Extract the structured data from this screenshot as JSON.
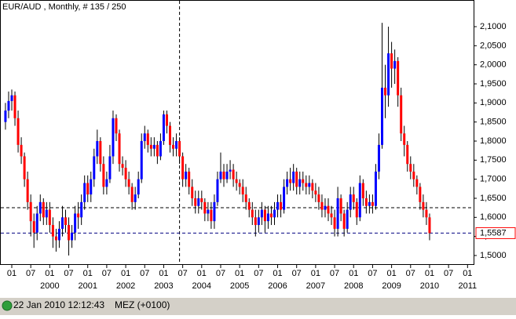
{
  "chart_data": {
    "type": "candlestick",
    "title": "EUR/AUD , Monthly, # 135 / 250",
    "x": [
      "1998-11",
      "1998-12",
      "1999-01",
      "1999-02",
      "1999-03",
      "1999-04",
      "1999-05",
      "1999-06",
      "1999-07",
      "1999-08",
      "1999-09",
      "1999-10",
      "1999-11",
      "1999-12",
      "2000-01",
      "2000-02",
      "2000-03",
      "2000-04",
      "2000-05",
      "2000-06",
      "2000-07",
      "2000-08",
      "2000-09",
      "2000-10",
      "2000-11",
      "2000-12",
      "2001-01",
      "2001-02",
      "2001-03",
      "2001-04",
      "2001-05",
      "2001-06",
      "2001-07",
      "2001-08",
      "2001-09",
      "2001-10",
      "2001-11",
      "2001-12",
      "2002-01",
      "2002-02",
      "2002-03",
      "2002-04",
      "2002-05",
      "2002-06",
      "2002-07",
      "2002-08",
      "2002-09",
      "2002-10",
      "2002-11",
      "2002-12",
      "2003-01",
      "2003-02",
      "2003-03",
      "2003-04",
      "2003-05",
      "2003-06",
      "2003-07",
      "2003-08",
      "2003-09",
      "2003-10",
      "2003-11",
      "2003-12",
      "2004-01",
      "2004-02",
      "2004-03",
      "2004-04",
      "2004-05",
      "2004-06",
      "2004-07",
      "2004-08",
      "2004-09",
      "2004-10",
      "2004-11",
      "2004-12",
      "2005-01",
      "2005-02",
      "2005-03",
      "2005-04",
      "2005-05",
      "2005-06",
      "2005-07",
      "2005-08",
      "2005-09",
      "2005-10",
      "2005-11",
      "2005-12",
      "2006-01",
      "2006-02",
      "2006-03",
      "2006-04",
      "2006-05",
      "2006-06",
      "2006-07",
      "2006-08",
      "2006-09",
      "2006-10",
      "2006-11",
      "2006-12",
      "2007-01",
      "2007-02",
      "2007-03",
      "2007-04",
      "2007-05",
      "2007-06",
      "2007-07",
      "2007-08",
      "2007-09",
      "2007-10",
      "2007-11",
      "2007-12",
      "2008-01",
      "2008-02",
      "2008-03",
      "2008-04",
      "2008-05",
      "2008-06",
      "2008-07",
      "2008-08",
      "2008-09",
      "2008-10",
      "2008-11",
      "2008-12",
      "2009-01",
      "2009-02",
      "2009-03",
      "2009-04",
      "2009-05",
      "2009-06",
      "2009-07",
      "2009-08",
      "2009-09",
      "2009-10",
      "2009-11",
      "2009-12",
      "2010-01"
    ],
    "open": [
      1.85,
      1.88,
      1.905,
      1.92,
      1.86,
      1.79,
      1.76,
      1.7,
      1.64,
      1.59,
      1.56,
      1.61,
      1.64,
      1.6,
      1.62,
      1.58,
      1.55,
      1.54,
      1.57,
      1.6,
      1.58,
      1.54,
      1.56,
      1.61,
      1.6,
      1.64,
      1.69,
      1.66,
      1.7,
      1.76,
      1.8,
      1.74,
      1.68,
      1.7,
      1.76,
      1.86,
      1.82,
      1.74,
      1.73,
      1.7,
      1.68,
      1.64,
      1.66,
      1.7,
      1.8,
      1.82,
      1.79,
      1.78,
      1.79,
      1.76,
      1.8,
      1.87,
      1.84,
      1.79,
      1.78,
      1.8,
      1.76,
      1.7,
      1.72,
      1.68,
      1.65,
      1.63,
      1.65,
      1.64,
      1.61,
      1.62,
      1.59,
      1.64,
      1.7,
      1.72,
      1.7,
      1.72,
      1.725,
      1.7,
      1.69,
      1.68,
      1.66,
      1.64,
      1.62,
      1.6,
      1.58,
      1.6,
      1.62,
      1.59,
      1.61,
      1.6,
      1.62,
      1.64,
      1.62,
      1.68,
      1.7,
      1.69,
      1.72,
      1.68,
      1.7,
      1.69,
      1.68,
      1.69,
      1.67,
      1.66,
      1.64,
      1.62,
      1.63,
      1.61,
      1.6,
      1.57,
      1.65,
      1.61,
      1.57,
      1.62,
      1.66,
      1.64,
      1.6,
      1.69,
      1.65,
      1.63,
      1.64,
      1.63,
      1.72,
      1.79,
      1.94,
      1.92,
      2.03,
      1.99,
      2.01,
      1.92,
      1.82,
      1.79,
      1.74,
      1.72,
      1.7,
      1.68,
      1.64,
      1.62,
      1.6
    ],
    "high": [
      1.9,
      1.93,
      1.935,
      1.93,
      1.88,
      1.81,
      1.77,
      1.72,
      1.66,
      1.61,
      1.63,
      1.66,
      1.65,
      1.64,
      1.64,
      1.6,
      1.57,
      1.59,
      1.63,
      1.62,
      1.6,
      1.58,
      1.63,
      1.64,
      1.66,
      1.71,
      1.71,
      1.72,
      1.78,
      1.83,
      1.81,
      1.76,
      1.72,
      1.79,
      1.88,
      1.87,
      1.83,
      1.76,
      1.75,
      1.72,
      1.69,
      1.68,
      1.72,
      1.82,
      1.84,
      1.83,
      1.81,
      1.81,
      1.8,
      1.82,
      1.88,
      1.88,
      1.85,
      1.81,
      1.82,
      1.81,
      1.77,
      1.74,
      1.73,
      1.7,
      1.67,
      1.67,
      1.67,
      1.65,
      1.64,
      1.64,
      1.66,
      1.72,
      1.77,
      1.74,
      1.74,
      1.75,
      1.74,
      1.72,
      1.7,
      1.7,
      1.68,
      1.65,
      1.64,
      1.62,
      1.62,
      1.64,
      1.63,
      1.63,
      1.63,
      1.64,
      1.66,
      1.66,
      1.7,
      1.72,
      1.73,
      1.74,
      1.73,
      1.72,
      1.72,
      1.71,
      1.71,
      1.7,
      1.69,
      1.68,
      1.66,
      1.65,
      1.65,
      1.63,
      1.62,
      1.68,
      1.66,
      1.62,
      1.64,
      1.68,
      1.68,
      1.65,
      1.71,
      1.7,
      1.67,
      1.66,
      1.66,
      1.74,
      1.82,
      2.11,
      2.0,
      2.1,
      2.06,
      2.04,
      2.02,
      1.94,
      1.84,
      1.8,
      1.76,
      1.74,
      1.71,
      1.69,
      1.66,
      1.64,
      1.61
    ],
    "low": [
      1.83,
      1.86,
      1.88,
      1.84,
      1.77,
      1.74,
      1.68,
      1.62,
      1.55,
      1.52,
      1.54,
      1.59,
      1.58,
      1.58,
      1.56,
      1.52,
      1.51,
      1.52,
      1.55,
      1.56,
      1.5,
      1.52,
      1.54,
      1.57,
      1.58,
      1.62,
      1.64,
      1.64,
      1.68,
      1.74,
      1.72,
      1.66,
      1.66,
      1.69,
      1.74,
      1.8,
      1.72,
      1.71,
      1.68,
      1.66,
      1.62,
      1.62,
      1.65,
      1.69,
      1.78,
      1.77,
      1.76,
      1.76,
      1.74,
      1.75,
      1.79,
      1.82,
      1.77,
      1.76,
      1.76,
      1.74,
      1.68,
      1.68,
      1.66,
      1.63,
      1.61,
      1.61,
      1.62,
      1.59,
      1.59,
      1.57,
      1.57,
      1.63,
      1.69,
      1.68,
      1.69,
      1.7,
      1.68,
      1.67,
      1.66,
      1.64,
      1.62,
      1.6,
      1.58,
      1.55,
      1.56,
      1.58,
      1.56,
      1.57,
      1.58,
      1.58,
      1.6,
      1.6,
      1.61,
      1.66,
      1.67,
      1.67,
      1.66,
      1.66,
      1.67,
      1.66,
      1.66,
      1.65,
      1.64,
      1.62,
      1.6,
      1.6,
      1.59,
      1.58,
      1.55,
      1.55,
      1.59,
      1.55,
      1.56,
      1.6,
      1.62,
      1.58,
      1.59,
      1.63,
      1.61,
      1.61,
      1.61,
      1.62,
      1.7,
      1.78,
      1.86,
      1.89,
      1.94,
      1.95,
      1.89,
      1.8,
      1.76,
      1.72,
      1.7,
      1.68,
      1.66,
      1.62,
      1.6,
      1.58,
      1.54
    ],
    "close": [
      1.88,
      1.905,
      1.92,
      1.86,
      1.79,
      1.76,
      1.7,
      1.64,
      1.59,
      1.56,
      1.61,
      1.64,
      1.6,
      1.62,
      1.58,
      1.55,
      1.54,
      1.57,
      1.6,
      1.58,
      1.54,
      1.56,
      1.61,
      1.6,
      1.64,
      1.69,
      1.66,
      1.7,
      1.76,
      1.8,
      1.74,
      1.68,
      1.7,
      1.76,
      1.86,
      1.82,
      1.74,
      1.73,
      1.7,
      1.68,
      1.64,
      1.66,
      1.7,
      1.8,
      1.82,
      1.79,
      1.78,
      1.79,
      1.76,
      1.8,
      1.87,
      1.84,
      1.79,
      1.78,
      1.8,
      1.76,
      1.7,
      1.72,
      1.68,
      1.65,
      1.63,
      1.65,
      1.64,
      1.61,
      1.62,
      1.59,
      1.64,
      1.7,
      1.72,
      1.7,
      1.72,
      1.725,
      1.7,
      1.69,
      1.68,
      1.66,
      1.64,
      1.62,
      1.6,
      1.58,
      1.6,
      1.62,
      1.59,
      1.61,
      1.6,
      1.62,
      1.64,
      1.62,
      1.68,
      1.7,
      1.69,
      1.72,
      1.68,
      1.7,
      1.69,
      1.68,
      1.69,
      1.67,
      1.66,
      1.64,
      1.62,
      1.63,
      1.61,
      1.6,
      1.57,
      1.65,
      1.61,
      1.57,
      1.62,
      1.66,
      1.64,
      1.6,
      1.69,
      1.65,
      1.63,
      1.64,
      1.63,
      1.72,
      1.79,
      1.94,
      1.92,
      2.03,
      1.99,
      2.01,
      1.92,
      1.82,
      1.79,
      1.74,
      1.72,
      1.7,
      1.68,
      1.64,
      1.62,
      1.6,
      1.5587
    ],
    "up_color": "#0000ff",
    "down_color": "#ff0000",
    "last_price": {
      "value": 1.5587,
      "label": "1,5587",
      "color": "#000080"
    },
    "reference_line": {
      "value": 1.6253,
      "color": "#000000"
    },
    "cursor_line": "2003-06",
    "ylim": [
      1.4753,
      2.1699
    ],
    "yticks": [
      {
        "value": 1.5,
        "label": "1,5000"
      },
      {
        "value": 1.55,
        "label": "1,5500"
      },
      {
        "value": 1.6,
        "label": "1,6000"
      },
      {
        "value": 1.65,
        "label": "1,6500"
      },
      {
        "value": 1.7,
        "label": "1,7000"
      },
      {
        "value": 1.75,
        "label": "1,7500"
      },
      {
        "value": 1.8,
        "label": "1,8000"
      },
      {
        "value": 1.85,
        "label": "1,8500"
      },
      {
        "value": 1.9,
        "label": "1,9000"
      },
      {
        "value": 1.95,
        "label": "1,9500"
      },
      {
        "value": 2.0,
        "label": "2,0000"
      },
      {
        "value": 2.05,
        "label": "2,0500"
      },
      {
        "value": 2.1,
        "label": "2,1000"
      }
    ],
    "xticks": [
      {
        "value": "1999-01",
        "label": "01"
      },
      {
        "value": "1999-07",
        "label": "07"
      },
      {
        "value": "2000-01",
        "label": "01"
      },
      {
        "value": "2000-07",
        "label": "07"
      },
      {
        "value": "2001-01",
        "label": "01"
      },
      {
        "value": "2001-07",
        "label": "07"
      },
      {
        "value": "2002-01",
        "label": "01"
      },
      {
        "value": "2002-07",
        "label": "07"
      },
      {
        "value": "2003-01",
        "label": "01"
      },
      {
        "value": "2003-07",
        "label": "07"
      },
      {
        "value": "2004-01",
        "label": "01"
      },
      {
        "value": "2004-07",
        "label": "07"
      },
      {
        "value": "2005-01",
        "label": "01"
      },
      {
        "value": "2005-07",
        "label": "07"
      },
      {
        "value": "2006-01",
        "label": "01"
      },
      {
        "value": "2006-07",
        "label": "07"
      },
      {
        "value": "2007-01",
        "label": "01"
      },
      {
        "value": "2007-07",
        "label": "07"
      },
      {
        "value": "2008-01",
        "label": "01"
      },
      {
        "value": "2008-07",
        "label": "07"
      },
      {
        "value": "2009-01",
        "label": "01"
      },
      {
        "value": "2009-07",
        "label": "07"
      },
      {
        "value": "2010-01",
        "label": "01"
      },
      {
        "value": "2010-07",
        "label": "07"
      },
      {
        "value": "2011-01",
        "label": "01"
      }
    ],
    "year_labels": [
      {
        "value": "2000-01",
        "label": "2000"
      },
      {
        "value": "2001-01",
        "label": "2001"
      },
      {
        "value": "2002-01",
        "label": "2002"
      },
      {
        "value": "2003-01",
        "label": "2003"
      },
      {
        "value": "2004-01",
        "label": "2004"
      },
      {
        "value": "2005-01",
        "label": "2005"
      },
      {
        "value": "2006-01",
        "label": "2006"
      },
      {
        "value": "2007-01",
        "label": "2007"
      },
      {
        "value": "2008-01",
        "label": "2008"
      },
      {
        "value": "2009-01",
        "label": "2009"
      },
      {
        "value": "2010-01",
        "label": "2010"
      },
      {
        "value": "2011-01",
        "label": "2011"
      }
    ]
  },
  "status_bar": {
    "timestamp": "22 Jan 2010 12:12:43",
    "timezone": "MEZ (+0100)"
  }
}
